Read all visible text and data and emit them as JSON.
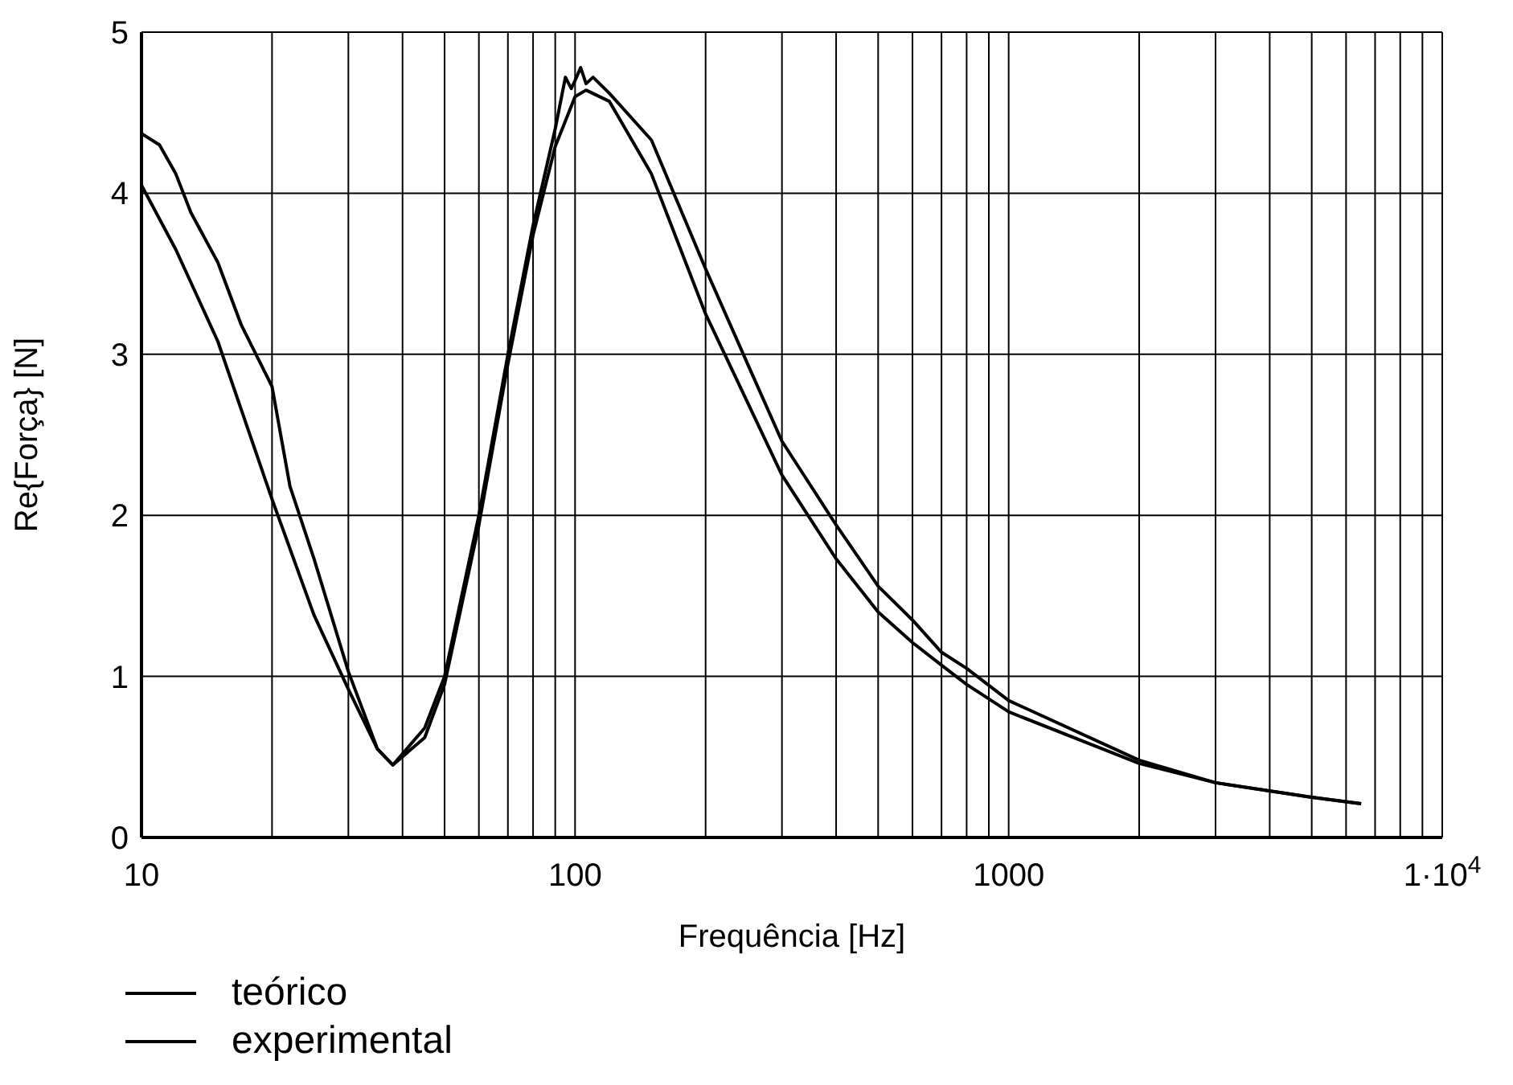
{
  "chart_data": {
    "type": "line",
    "xlabel": "Frequência [Hz]",
    "ylabel": "Re{Força} [N]",
    "log": "x",
    "grid": true,
    "legend": "bottom left",
    "line_style": "solid",
    "xlim": [
      10,
      10000
    ],
    "ylim": [
      0,
      5
    ],
    "yticks": [
      0,
      1,
      2,
      3,
      4,
      5
    ],
    "xticks": [
      10,
      {
        "value": 20,
        "label": null
      },
      {
        "value": 30,
        "label": null
      },
      {
        "value": 40,
        "label": null
      },
      {
        "value": 50,
        "label": null
      },
      {
        "value": 60,
        "label": null
      },
      {
        "value": 70,
        "label": null
      },
      {
        "value": 80,
        "label": null
      },
      {
        "value": 90,
        "label": null
      },
      100,
      {
        "value": 200,
        "label": null
      },
      {
        "value": 300,
        "label": null
      },
      {
        "value": 400,
        "label": null
      },
      {
        "value": 500,
        "label": null
      },
      {
        "value": 600,
        "label": null
      },
      {
        "value": 700,
        "label": null
      },
      {
        "value": 800,
        "label": null
      },
      {
        "value": 900,
        "label": null
      },
      1000,
      {
        "value": 2000,
        "label": null
      },
      {
        "value": 3000,
        "label": null
      },
      {
        "value": 4000,
        "label": null
      },
      {
        "value": 5000,
        "label": null
      },
      {
        "value": 6000,
        "label": null
      },
      {
        "value": 7000,
        "label": null
      },
      {
        "value": 8000,
        "label": null
      },
      {
        "value": 9000,
        "label": null
      },
      {
        "value": 10000,
        "label": "1·10$^{4}$"
      }
    ],
    "series": [
      {
        "name": "teórico",
        "color": "#000000",
        "x": [
          10,
          12,
          15,
          20,
          25,
          30,
          35,
          38,
          45,
          50,
          60,
          70,
          80,
          90,
          100,
          106,
          120,
          150,
          200,
          250,
          300,
          400,
          500,
          600,
          700,
          800,
          1000,
          2000,
          3000,
          5000,
          6500
        ],
        "values": [
          4.05,
          3.65,
          3.08,
          2.1,
          1.38,
          0.92,
          0.55,
          0.45,
          0.62,
          0.95,
          1.94,
          2.94,
          3.74,
          4.29,
          4.6,
          4.64,
          4.57,
          4.12,
          3.25,
          2.7,
          2.25,
          1.73,
          1.4,
          1.21,
          1.07,
          0.95,
          0.78,
          0.46,
          0.34,
          0.25,
          0.21
        ]
      },
      {
        "name": "experimental",
        "color": "#000000",
        "x": [
          10,
          11,
          12,
          13,
          15,
          17,
          20,
          22,
          25,
          30,
          35,
          38,
          45,
          50,
          60,
          70,
          80,
          90,
          95,
          98,
          100,
          103,
          106,
          110,
          120,
          150,
          200,
          250,
          300,
          400,
          500,
          600,
          700,
          800,
          1000,
          2000,
          3000,
          5000,
          6500
        ],
        "values": [
          4.37,
          4.3,
          4.12,
          3.88,
          3.57,
          3.18,
          2.8,
          2.18,
          1.73,
          1.03,
          0.55,
          0.45,
          0.68,
          1.0,
          2.0,
          3.0,
          3.8,
          4.4,
          4.72,
          4.65,
          4.7,
          4.78,
          4.68,
          4.72,
          4.62,
          4.33,
          3.53,
          2.94,
          2.46,
          1.94,
          1.56,
          1.35,
          1.15,
          1.05,
          0.85,
          0.48,
          0.34,
          0.25,
          0.21
        ]
      }
    ]
  }
}
